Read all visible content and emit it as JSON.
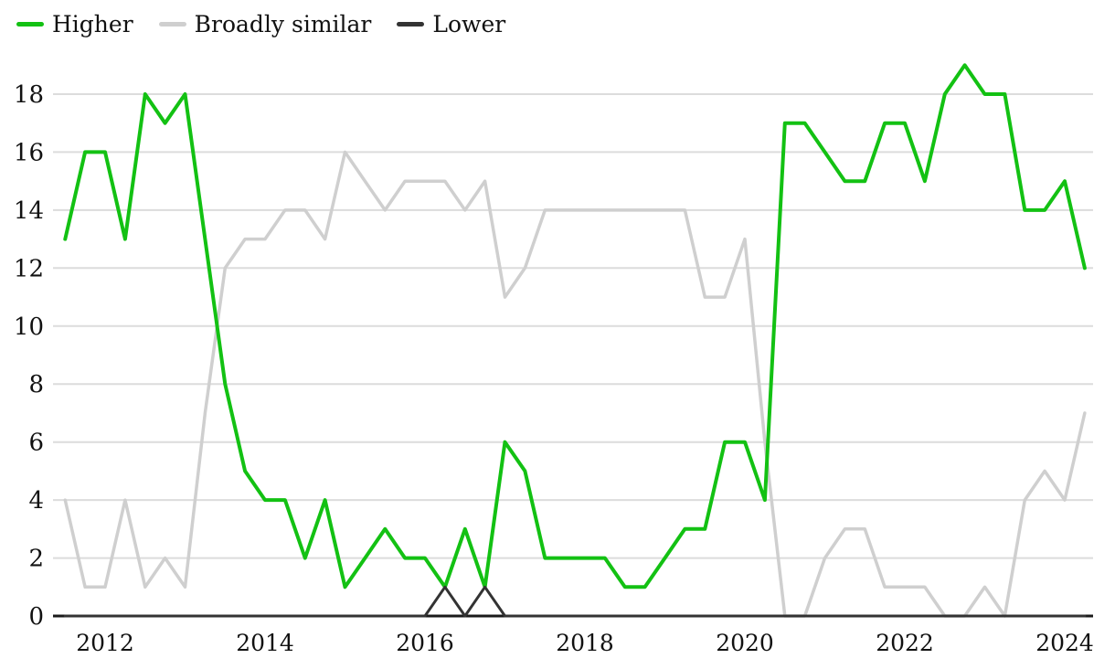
{
  "chart_data": {
    "type": "line",
    "title": "",
    "xlabel": "",
    "ylabel": "",
    "x": [
      2011.5,
      2011.75,
      2012,
      2012.25,
      2012.5,
      2012.75,
      2013,
      2013.25,
      2013.5,
      2013.75,
      2014,
      2014.25,
      2014.5,
      2014.75,
      2015,
      2015.25,
      2015.5,
      2015.75,
      2016,
      2016.25,
      2016.5,
      2016.75,
      2017,
      2017.25,
      2017.5,
      2017.75,
      2018,
      2018.25,
      2018.5,
      2018.75,
      2019,
      2019.25,
      2019.5,
      2019.75,
      2020,
      2020.25,
      2020.5,
      2020.75,
      2021,
      2021.25,
      2021.5,
      2021.75,
      2022,
      2022.25,
      2022.5,
      2022.75,
      2023,
      2023.25,
      2023.5,
      2023.75,
      2024,
      2024.25
    ],
    "series": [
      {
        "name": "Higher",
        "color": "#13c113",
        "width": 4,
        "values": [
          13,
          16,
          16,
          13,
          18,
          17,
          18,
          13,
          8,
          5,
          4,
          4,
          2,
          4,
          1,
          2,
          3,
          2,
          2,
          1,
          3,
          1,
          6,
          5,
          2,
          2,
          2,
          2,
          1,
          1,
          2,
          3,
          3,
          6,
          6,
          4,
          17,
          17,
          16,
          15,
          15,
          17,
          17,
          15,
          18,
          19,
          18,
          18,
          14,
          14,
          15,
          12
        ]
      },
      {
        "name": "Broadly similar",
        "color": "#cfcfcf",
        "width": 3.5,
        "values": [
          4,
          1,
          1,
          4,
          1,
          2,
          1,
          7,
          12,
          13,
          13,
          14,
          14,
          13,
          16,
          15,
          14,
          15,
          15,
          15,
          14,
          15,
          11,
          12,
          14,
          14,
          14,
          14,
          14,
          14,
          14,
          14,
          11,
          11,
          13,
          6,
          0,
          0,
          2,
          3,
          3,
          1,
          1,
          1,
          0,
          0,
          1,
          0,
          4,
          5,
          4,
          7
        ]
      },
      {
        "name": "Lower",
        "color": "#333333",
        "width": 3,
        "values": [
          0,
          0,
          0,
          0,
          0,
          0,
          0,
          0,
          0,
          0,
          0,
          0,
          0,
          0,
          0,
          0,
          0,
          0,
          0,
          1,
          0,
          1,
          0,
          0,
          0,
          0,
          0,
          0,
          0,
          0,
          0,
          0,
          0,
          0,
          0,
          0,
          0,
          0,
          0,
          0,
          0,
          0,
          0,
          0,
          0,
          0,
          0,
          0,
          0,
          0,
          0,
          0
        ]
      }
    ],
    "x_ticks": [
      2012,
      2014,
      2016,
      2018,
      2020,
      2022,
      2024
    ],
    "y_ticks": [
      0,
      2,
      4,
      6,
      8,
      10,
      12,
      14,
      16,
      18
    ],
    "xlim": [
      2011.35,
      2024.35
    ],
    "ylim": [
      0,
      19
    ],
    "grid": "horizontal",
    "legend_position": "top-left",
    "grid_color": "#dcdcdc",
    "axis_color": "#1a1a1a",
    "text_color": "#111111",
    "background_color": "#ffffff"
  }
}
